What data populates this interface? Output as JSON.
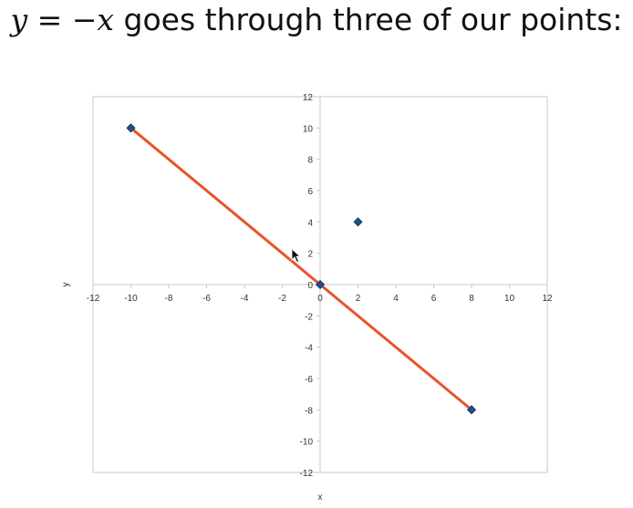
{
  "slide": {
    "heading": {
      "lhs": "y",
      "eq": "=",
      "neg": "−",
      "rhs": "x",
      "text": "goes through three of our points:"
    }
  },
  "chart_data": {
    "type": "scatter",
    "title": "",
    "xlabel": "x",
    "ylabel": "y",
    "xlim": [
      -12,
      12
    ],
    "ylim": [
      -12,
      12
    ],
    "xticks": [
      -12,
      -10,
      -8,
      -6,
      -4,
      -2,
      0,
      2,
      4,
      6,
      8,
      10,
      12
    ],
    "yticks": [
      -12,
      -10,
      -8,
      -6,
      -4,
      -2,
      0,
      2,
      4,
      6,
      8,
      10,
      12
    ],
    "grid": false,
    "legend": "none",
    "points": [
      {
        "x": -10,
        "y": 10
      },
      {
        "x": 0,
        "y": 0
      },
      {
        "x": 2,
        "y": 4
      },
      {
        "x": 8,
        "y": -8
      }
    ],
    "line": {
      "from": [
        -10,
        10
      ],
      "to": [
        8,
        -8
      ],
      "color": "#e8532a"
    },
    "marker_color": "#1f4e8c",
    "axis_color": "#c8c8c8"
  }
}
